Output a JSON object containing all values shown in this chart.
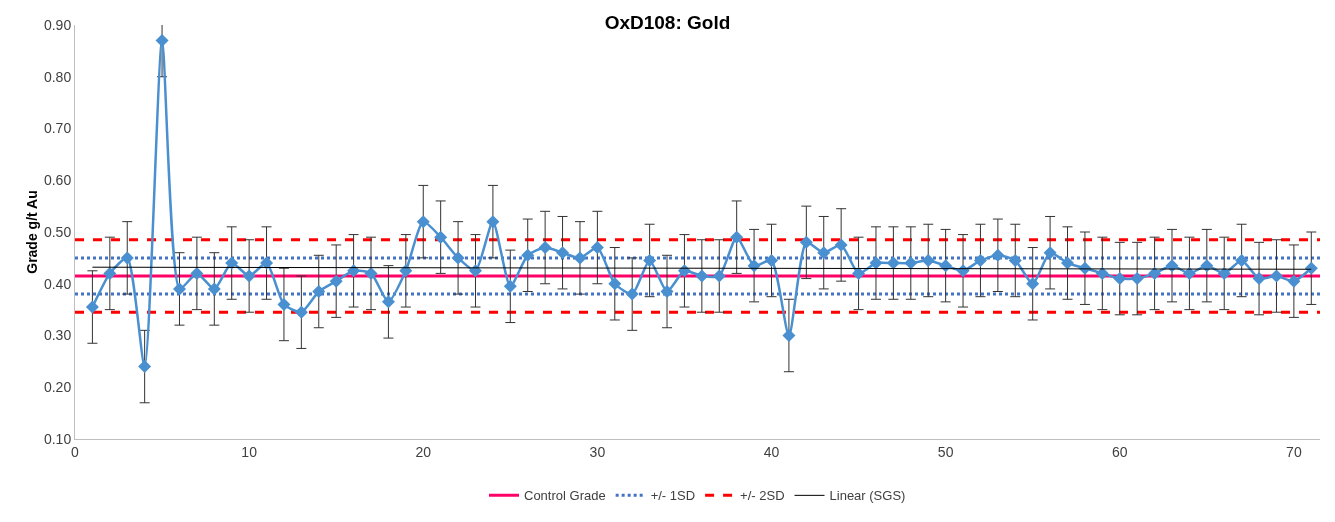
{
  "chart_data": {
    "type": "line",
    "title": "OxD108: Gold",
    "ylabel": "Grade g/t Au",
    "x": [
      1,
      2,
      3,
      4,
      5,
      6,
      7,
      8,
      9,
      10,
      11,
      12,
      13,
      14,
      15,
      16,
      17,
      18,
      19,
      20,
      21,
      22,
      23,
      24,
      25,
      26,
      27,
      28,
      29,
      30,
      31,
      32,
      33,
      34,
      35,
      36,
      37,
      38,
      39,
      40,
      41,
      42,
      43,
      44,
      45,
      46,
      47,
      48,
      49,
      50,
      51,
      52,
      53,
      54,
      55,
      56,
      57,
      58,
      59,
      60,
      61,
      62,
      63,
      64,
      65,
      66,
      67,
      68,
      69,
      70,
      71
    ],
    "series": [
      {
        "color": "#4a90d0",
        "marker": "diamond",
        "line_style": "solid",
        "values": [
          0.355,
          0.42,
          0.45,
          0.24,
          0.87,
          0.39,
          0.42,
          0.39,
          0.44,
          0.415,
          0.44,
          0.36,
          0.345,
          0.385,
          0.405,
          0.425,
          0.42,
          0.365,
          0.425,
          0.52,
          0.49,
          0.45,
          0.425,
          0.52,
          0.395,
          0.455,
          0.47,
          0.46,
          0.45,
          0.47,
          0.4,
          0.38,
          0.445,
          0.385,
          0.425,
          0.415,
          0.415,
          0.49,
          0.435,
          0.445,
          0.3,
          0.48,
          0.46,
          0.475,
          0.42,
          0.44,
          0.44,
          0.44,
          0.445,
          0.435,
          0.425,
          0.445,
          0.455,
          0.445,
          0.4,
          0.46,
          0.44,
          0.43,
          0.42,
          0.41,
          0.41,
          0.42,
          0.435,
          0.42,
          0.435,
          0.42,
          0.445,
          0.41,
          0.415,
          0.405,
          0.43
        ],
        "errors": [
          0.07,
          0.07,
          0.07,
          0.07,
          0.07,
          0.07,
          0.07,
          0.07,
          0.07,
          0.07,
          0.07,
          0.07,
          0.07,
          0.07,
          0.07,
          0.07,
          0.07,
          0.07,
          0.07,
          0.07,
          0.07,
          0.07,
          0.07,
          0.07,
          0.07,
          0.07,
          0.07,
          0.07,
          0.07,
          0.07,
          0.07,
          0.07,
          0.07,
          0.07,
          0.07,
          0.07,
          0.07,
          0.07,
          0.07,
          0.07,
          0.07,
          0.07,
          0.07,
          0.07,
          0.07,
          0.07,
          0.07,
          0.07,
          0.07,
          0.07,
          0.07,
          0.07,
          0.07,
          0.07,
          0.07,
          0.07,
          0.07,
          0.07,
          0.07,
          0.07,
          0.07,
          0.07,
          0.07,
          0.07,
          0.07,
          0.07,
          0.07,
          0.07,
          0.07,
          0.07,
          0.07
        ]
      },
      {
        "name": "Linear (SGS)",
        "type": "line",
        "color": "#000000",
        "marker": "none",
        "line_style": "solid",
        "x": [
          1,
          71
        ],
        "values": [
          0.432,
          0.428
        ]
      }
    ],
    "ref_lines": [
      {
        "axis": "y",
        "value": 0.415,
        "label": "Control Grade",
        "color": "#ff0066",
        "line_style": "solid"
      },
      {
        "axis": "y",
        "value": 0.45,
        "label": "+/- 1SD",
        "color": "#4472c4",
        "line_style": "dotted"
      },
      {
        "axis": "y",
        "value": 0.38,
        "color": "#4472c4",
        "line_style": "dotted"
      },
      {
        "axis": "y",
        "value": 0.485,
        "label": "+/- 2SD",
        "color": "#ff0000",
        "line_style": "dashed"
      },
      {
        "axis": "y",
        "value": 0.345,
        "color": "#ff0000",
        "line_style": "dashed"
      }
    ],
    "xlim": [
      0,
      71.5
    ],
    "xticks": [
      0,
      10,
      20,
      30,
      40,
      50,
      60,
      70
    ],
    "ylim": [
      0.1,
      0.9
    ],
    "yticks": [
      {
        "value": 0.1,
        "label": "0.10"
      },
      {
        "value": 0.2,
        "label": "0.20"
      },
      {
        "value": 0.3,
        "label": "0.30"
      },
      {
        "value": 0.4,
        "label": "0.40"
      },
      {
        "value": 0.5,
        "label": "0.50"
      },
      {
        "value": 0.6,
        "label": "0.60"
      },
      {
        "value": 0.7,
        "label": "0.70"
      },
      {
        "value": 0.8,
        "label": "0.80"
      },
      {
        "value": 0.9,
        "label": "0.90"
      }
    ],
    "grid": false,
    "legend": "bottom"
  }
}
